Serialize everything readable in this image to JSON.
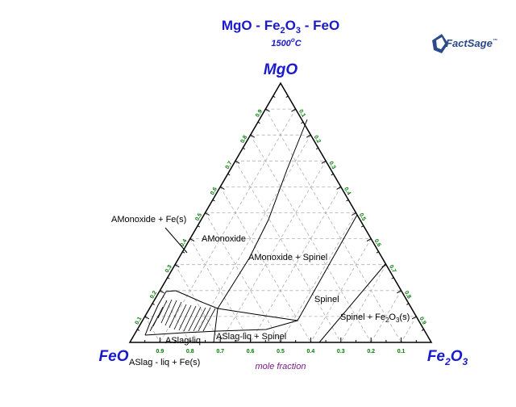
{
  "title": {
    "prefix": "MgO - Fe",
    "sub1": "2",
    "mid": "O",
    "sub2": "3",
    "suffix": " - FeO"
  },
  "temperature": {
    "value": "1500",
    "degree": "o",
    "unit": "C"
  },
  "logo": {
    "main": "FactSage",
    "tm": "™"
  },
  "vertices": {
    "top": "MgO",
    "left": "FeO",
    "right_prefix": "Fe",
    "right_sub1": "2",
    "right_mid": "O",
    "right_sub2": "3"
  },
  "axis_label": "mole fraction",
  "ticks": [
    "0.1",
    "0.2",
    "0.3",
    "0.4",
    "0.5",
    "0.6",
    "0.7",
    "0.8",
    "0.9"
  ],
  "regions": {
    "amonoxide_fe": "AMonoxide + Fe(s)",
    "amonoxide": "AMonoxide",
    "amonoxide_spinel": "AMonoxide + Spinel",
    "spinel": "Spinel",
    "spinel_fe2o3_a": "Spinel + Fe",
    "spinel_fe2o3_sub1": "2",
    "spinel_fe2o3_b": "O",
    "spinel_fe2o3_sub2": "3",
    "spinel_fe2o3_c": "(s)",
    "aslag_liq": "ASlag-liq",
    "aslag_liq_spinel": "ASlag-liq + Spinel",
    "aslag_liq_fe": "ASlag - liq + Fe(s)"
  },
  "colors": {
    "title": "#1a1acc",
    "ticks": "#007a00",
    "axis_label": "#7a1a8a",
    "grid": "#b0b0b0"
  }
}
